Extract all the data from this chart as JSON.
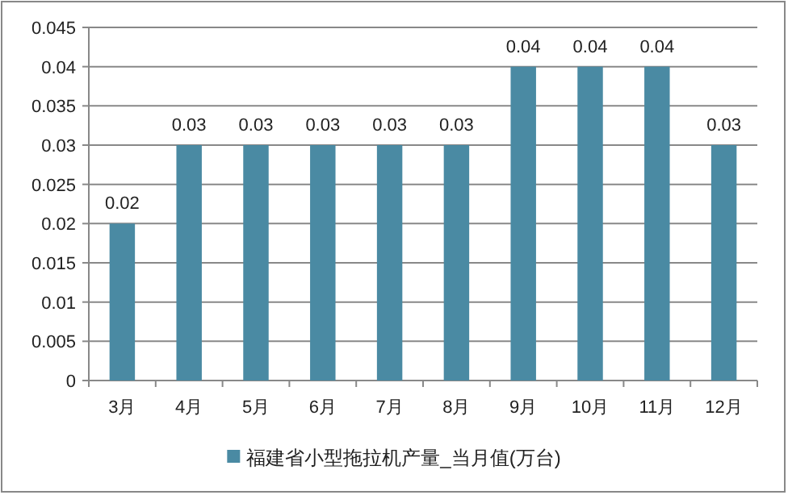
{
  "chart_data": {
    "type": "bar",
    "categories": [
      "3月",
      "4月",
      "5月",
      "6月",
      "7月",
      "8月",
      "9月",
      "10月",
      "11月",
      "12月"
    ],
    "series": [
      {
        "name": "福建省小型拖拉机产量_当月值(万台)",
        "color": "#4a8aa3",
        "values": [
          0.02,
          0.03,
          0.03,
          0.03,
          0.03,
          0.03,
          0.04,
          0.04,
          0.04,
          0.03
        ]
      }
    ],
    "ylim": [
      0,
      0.045
    ],
    "yticks": [
      0,
      0.005,
      0.01,
      0.015,
      0.02,
      0.025,
      0.03,
      0.035,
      0.04,
      0.045
    ],
    "grid": "y",
    "legend": "bottom",
    "data_labels": true
  }
}
